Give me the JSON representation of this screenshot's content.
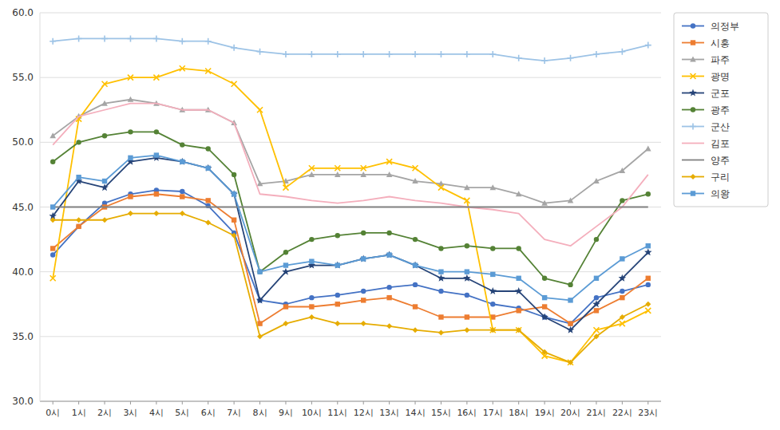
{
  "chart_data": {
    "type": "line",
    "categories": [
      "0시",
      "1시",
      "2시",
      "3시",
      "4시",
      "5시",
      "6시",
      "7시",
      "8시",
      "9시",
      "10시",
      "11시",
      "12시",
      "13시",
      "14시",
      "15시",
      "16시",
      "17시",
      "18시",
      "19시",
      "20시",
      "21시",
      "22시",
      "23시"
    ],
    "ylim": [
      30.0,
      60.0
    ],
    "yticks": [
      {
        "value": 30.0,
        "label": "30.0"
      },
      {
        "value": 35.0,
        "label": "35.0"
      },
      {
        "value": 40.0,
        "label": "40.0"
      },
      {
        "value": 45.0,
        "label": "45.0"
      },
      {
        "value": 50.0,
        "label": "50.0"
      },
      {
        "value": 55.0,
        "label": "55.0"
      },
      {
        "value": 60.0,
        "label": "60.0"
      }
    ],
    "grid": "y",
    "legend": "right",
    "series": [
      {
        "name": "의정부",
        "color": "#4472C4",
        "marker": "circle",
        "values": [
          41.3,
          43.5,
          45.3,
          46.0,
          46.3,
          46.2,
          45.1,
          43.0,
          37.8,
          37.5,
          38.0,
          38.2,
          38.5,
          38.8,
          39.0,
          38.5,
          38.2,
          37.5,
          37.2,
          36.5,
          36.0,
          38.0,
          38.5,
          39.0
        ]
      },
      {
        "name": "시흥",
        "color": "#ED7D31",
        "marker": "square",
        "values": [
          41.8,
          43.5,
          45.0,
          45.8,
          46.0,
          45.8,
          45.5,
          44.0,
          36.0,
          37.3,
          37.3,
          37.5,
          37.8,
          38.0,
          37.3,
          36.5,
          36.5,
          36.5,
          37.0,
          37.3,
          36.0,
          37.0,
          38.0,
          39.5
        ]
      },
      {
        "name": "파주",
        "color": "#A5A5A5",
        "marker": "triangle",
        "values": [
          50.5,
          52.0,
          53.0,
          53.3,
          53.0,
          52.5,
          52.5,
          51.5,
          46.8,
          47.0,
          47.5,
          47.5,
          47.5,
          47.5,
          47.0,
          46.8,
          46.5,
          46.5,
          46.0,
          45.3,
          45.5,
          47.0,
          47.8,
          49.5
        ]
      },
      {
        "name": "광명",
        "color": "#FFC000",
        "marker": "x",
        "values": [
          39.5,
          51.8,
          54.5,
          55.0,
          55.0,
          55.7,
          55.5,
          54.5,
          52.5,
          46.5,
          48.0,
          48.0,
          48.0,
          48.5,
          48.0,
          46.5,
          45.5,
          35.5,
          35.5,
          33.5,
          33.0,
          35.5,
          36.0,
          37.0
        ]
      },
      {
        "name": "군포",
        "color": "#264478",
        "marker": "star",
        "values": [
          44.3,
          47.0,
          46.5,
          48.5,
          48.8,
          48.5,
          48.0,
          46.0,
          37.8,
          40.0,
          40.5,
          40.5,
          41.0,
          41.3,
          40.5,
          39.5,
          39.5,
          38.5,
          38.5,
          36.5,
          35.5,
          37.5,
          39.5,
          41.5
        ]
      },
      {
        "name": "광주",
        "color": "#548235",
        "marker": "circle",
        "values": [
          48.5,
          50.0,
          50.5,
          50.8,
          50.8,
          49.8,
          49.5,
          47.5,
          40.0,
          41.5,
          42.5,
          42.8,
          43.0,
          43.0,
          42.5,
          41.8,
          42.0,
          41.8,
          41.8,
          39.5,
          39.0,
          42.5,
          45.5,
          46.0
        ]
      },
      {
        "name": "군산",
        "color": "#9DC3E6",
        "marker": "plus",
        "values": [
          57.8,
          58.0,
          58.0,
          58.0,
          58.0,
          57.8,
          57.8,
          57.3,
          57.0,
          56.8,
          56.8,
          56.8,
          56.8,
          56.8,
          56.8,
          56.8,
          56.8,
          56.8,
          56.5,
          56.3,
          56.5,
          56.8,
          57.0,
          57.5
        ]
      },
      {
        "name": "김포",
        "color": "#F4AEBC",
        "marker": "none",
        "values": [
          49.8,
          52.0,
          52.5,
          53.0,
          53.0,
          52.5,
          52.5,
          51.5,
          46.0,
          45.8,
          45.5,
          45.3,
          45.5,
          45.8,
          45.5,
          45.3,
          45.0,
          44.8,
          44.5,
          42.5,
          42.0,
          43.5,
          45.0,
          47.5
        ]
      },
      {
        "name": "양주",
        "color": "#808080",
        "marker": "none",
        "values": [
          45.0,
          45.0,
          45.0,
          45.0,
          45.0,
          45.0,
          45.0,
          45.0,
          45.0,
          45.0,
          45.0,
          45.0,
          45.0,
          45.0,
          45.0,
          45.0,
          45.0,
          45.0,
          45.0,
          45.0,
          45.0,
          45.0,
          45.0,
          45.0
        ]
      },
      {
        "name": "구리",
        "color": "#E6AC00",
        "marker": "diamond",
        "values": [
          44.0,
          44.0,
          44.0,
          44.5,
          44.5,
          44.5,
          43.8,
          42.8,
          35.0,
          36.0,
          36.5,
          36.0,
          36.0,
          35.8,
          35.5,
          35.3,
          35.5,
          35.5,
          35.5,
          33.8,
          33.0,
          35.0,
          36.5,
          37.5
        ]
      },
      {
        "name": "의왕",
        "color": "#5B9BD5",
        "marker": "square",
        "values": [
          45.0,
          47.3,
          47.0,
          48.8,
          49.0,
          48.5,
          48.0,
          46.0,
          40.0,
          40.5,
          40.8,
          40.5,
          41.0,
          41.3,
          40.5,
          40.0,
          40.0,
          39.8,
          39.5,
          38.0,
          37.8,
          39.5,
          41.0,
          42.0
        ]
      }
    ]
  }
}
